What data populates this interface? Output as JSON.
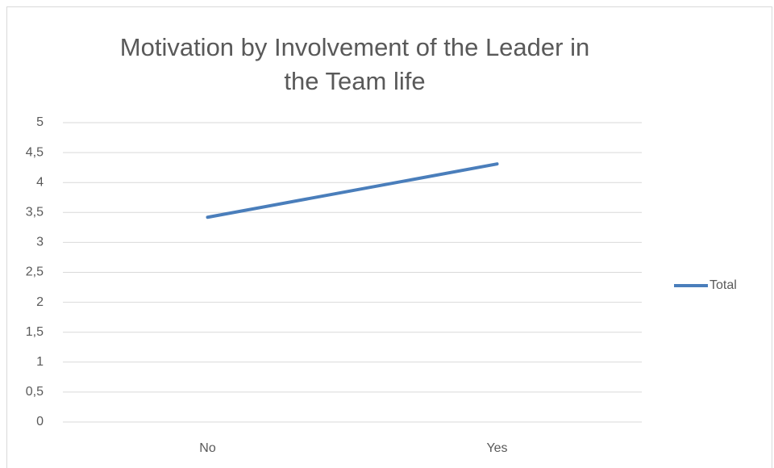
{
  "chart_data": {
    "type": "line",
    "title": "Motivation by Involvement of the Leader in the Team life",
    "categories": [
      "No",
      "Yes"
    ],
    "series": [
      {
        "name": "Total",
        "color": "#4a7ebb",
        "values": [
          3.42,
          4.31
        ]
      }
    ],
    "ylim": [
      0,
      5
    ],
    "yticks": [
      0,
      {
        "value": 0.5,
        "label": "0,5"
      },
      1,
      {
        "value": 1.5,
        "label": "1,5"
      },
      2,
      {
        "value": 2.5,
        "label": "2,5"
      },
      3,
      {
        "value": 3.5,
        "label": "3,5"
      },
      4,
      {
        "value": 4.5,
        "label": "4,5"
      },
      5
    ],
    "grid": true,
    "legend": "right"
  }
}
